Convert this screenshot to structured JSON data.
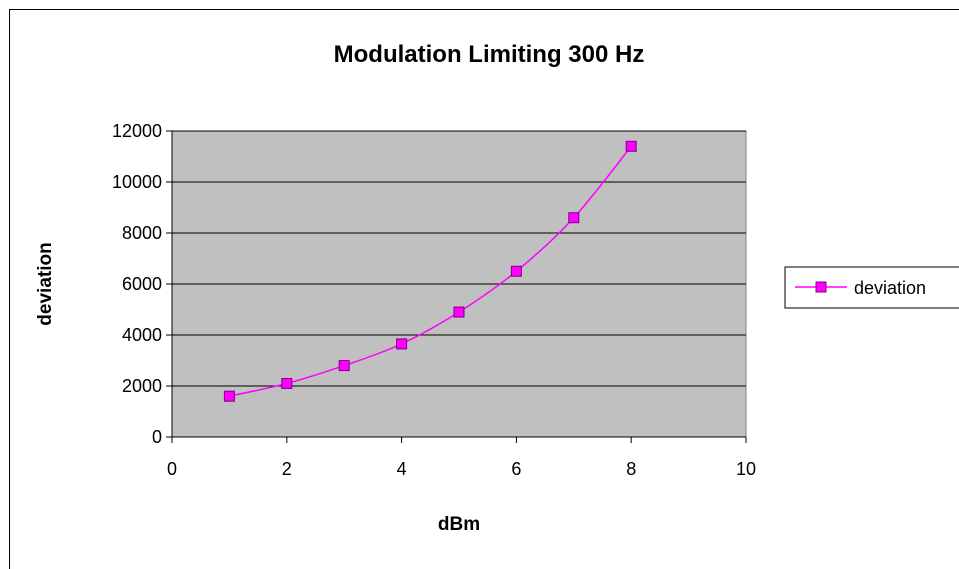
{
  "chart_data": {
    "type": "line",
    "title": "Modulation Limiting 300 Hz",
    "xlabel": "dBm",
    "ylabel": "deviation",
    "xlim": [
      0,
      10
    ],
    "ylim": [
      0,
      12000
    ],
    "x_ticks": [
      "0",
      "2",
      "4",
      "6",
      "8",
      "10"
    ],
    "y_ticks": [
      "0",
      "2000",
      "4000",
      "6000",
      "8000",
      "10000",
      "12000"
    ],
    "grid": true,
    "plot_background": "#c0c0c0",
    "legend_position": "right",
    "series": [
      {
        "name": "deviation",
        "color": "#ff00ff",
        "marker": "square",
        "smooth": true,
        "x": [
          1,
          2,
          3,
          4,
          5,
          6,
          7,
          8
        ],
        "y": [
          1600,
          2100,
          2800,
          3650,
          4900,
          6500,
          8600,
          11400
        ]
      }
    ]
  }
}
